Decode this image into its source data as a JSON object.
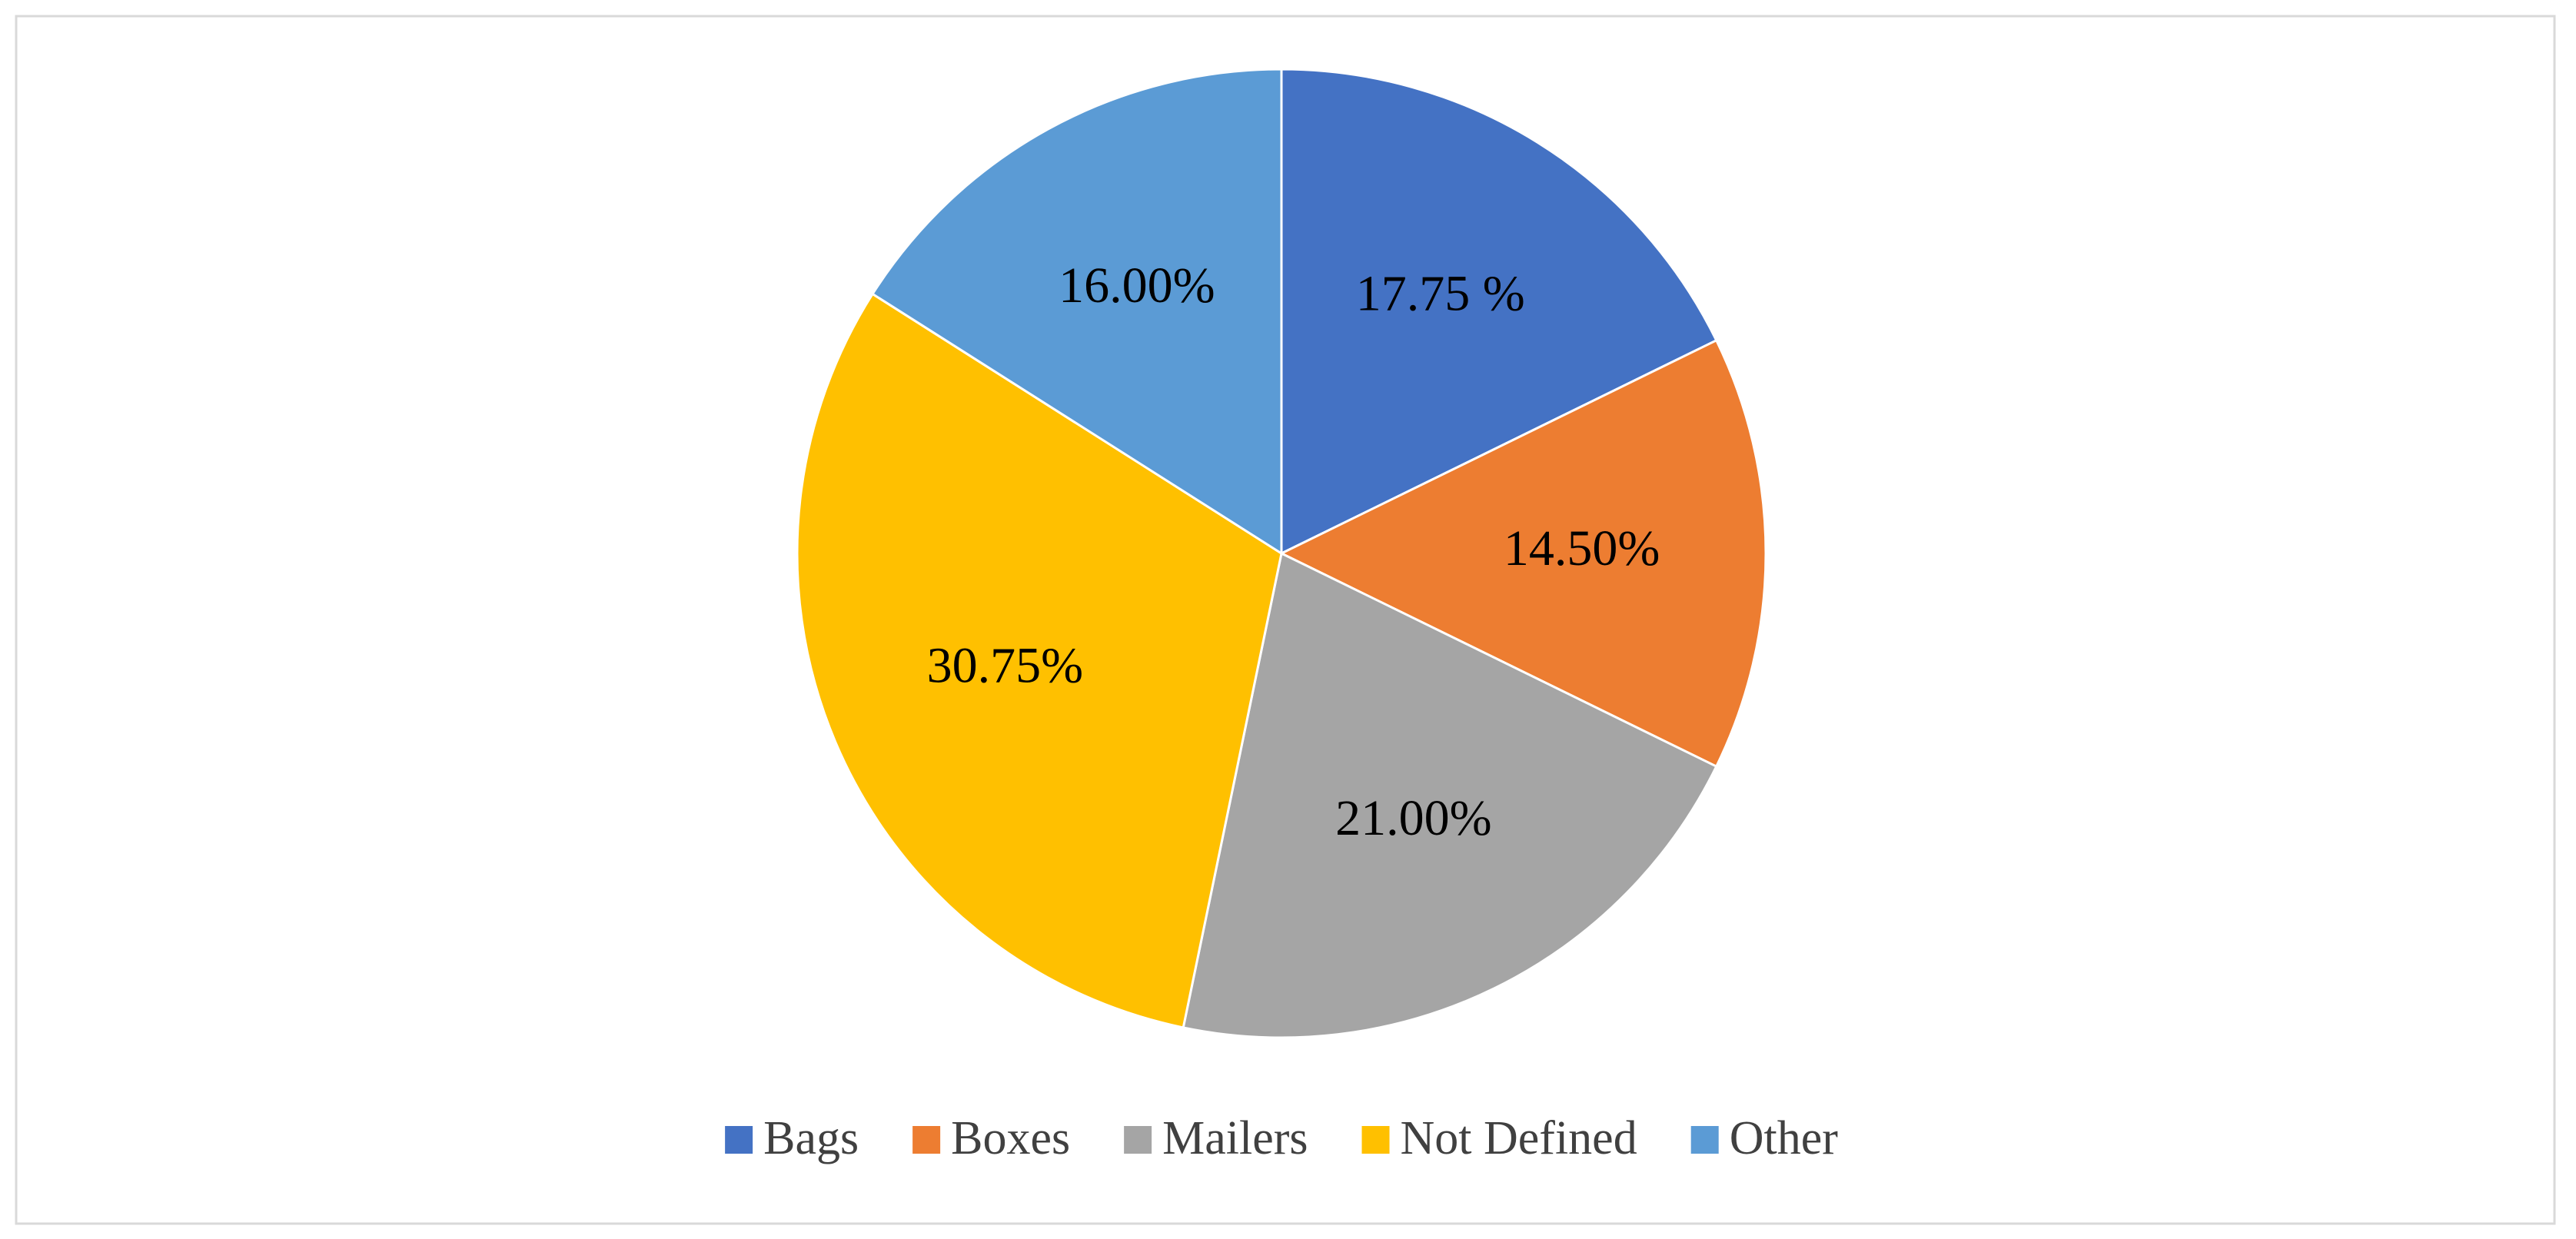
{
  "chart_data": {
    "type": "pie",
    "categories": [
      "Bags",
      "Boxes",
      "Mailers",
      "Not Defined",
      "Other"
    ],
    "values": [
      17.75,
      14.5,
      21,
      30.75,
      16
    ],
    "value_labels": [
      "17.75 %",
      "14.50%",
      "21.00%",
      "30.75%",
      "16.00%"
    ],
    "colors": [
      "#4472c4",
      "#ed7d31",
      "#a5a5a5",
      "#ffc000",
      "#5b9bd5"
    ],
    "legend": "bottom"
  }
}
